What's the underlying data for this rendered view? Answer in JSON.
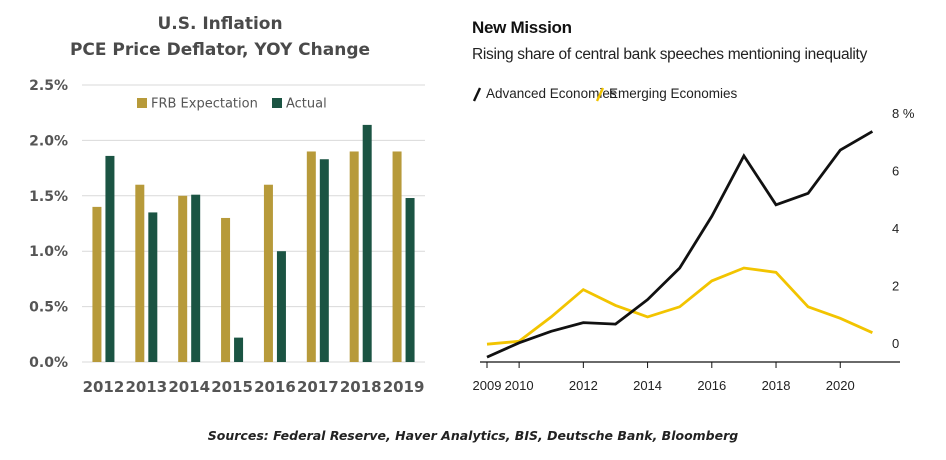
{
  "chart_data": [
    {
      "type": "bar",
      "title": "U.S. Inflation",
      "subtitle": "PCE Price Deflator, YOY Change",
      "categories": [
        "2012",
        "2013",
        "2014",
        "2015",
        "2016",
        "2017",
        "2018",
        "2019"
      ],
      "series": [
        {
          "name": "FRB Expectation",
          "color": "#B79A3A",
          "values": [
            1.4,
            1.6,
            1.5,
            1.3,
            1.6,
            1.9,
            1.9,
            1.9
          ]
        },
        {
          "name": "Actual",
          "color": "#1B5443",
          "values": [
            1.86,
            1.35,
            1.51,
            0.22,
            1.0,
            1.83,
            2.14,
            1.48
          ]
        }
      ],
      "ylim": [
        0,
        2.5
      ],
      "yticks": [
        0,
        0.5,
        1.0,
        1.5,
        2.0,
        2.5
      ],
      "ytick_labels": [
        "0.0%",
        "0.5%",
        "1.0%",
        "1.5%",
        "2.0%",
        "2.5%"
      ],
      "legend": "top",
      "grid": true
    },
    {
      "type": "line",
      "title": "New Mission",
      "subtitle": "Rising share of central bank speeches mentioning inequality",
      "series": [
        {
          "name": "Advanced Economies",
          "color": "#111111",
          "x": [
            2009,
            2010,
            2011,
            2012,
            2013,
            2014,
            2015,
            2016,
            2017,
            2018,
            2019,
            2020,
            2021
          ],
          "values": [
            0.1,
            0.6,
            1.0,
            1.3,
            1.25,
            2.1,
            3.2,
            5.0,
            7.1,
            5.4,
            5.8,
            7.3,
            7.95
          ]
        },
        {
          "name": "Emerging Economies",
          "color": "#F2C400",
          "x": [
            2009,
            2010,
            2011,
            2012,
            2013,
            2014,
            2015,
            2016,
            2017,
            2018,
            2019,
            2020,
            2021
          ],
          "values": [
            0.55,
            0.65,
            1.5,
            2.45,
            1.9,
            1.5,
            1.85,
            2.75,
            3.2,
            3.05,
            1.85,
            1.45,
            0.95
          ]
        }
      ],
      "xticks": [
        2009,
        2010,
        2012,
        2014,
        2016,
        2018,
        2020
      ],
      "xtick_labels": [
        "2009",
        "2010",
        "2012",
        "2014",
        "2016",
        "2018",
        "2020"
      ],
      "yticks": [
        0,
        2,
        4,
        6,
        8
      ],
      "ytick_labels": [
        "0",
        "2",
        "4",
        "6",
        "8 %"
      ],
      "xlim": [
        2009,
        2021.3
      ],
      "ylim": [
        0,
        8
      ],
      "legend": "top-left",
      "grid": false
    }
  ],
  "footer": {
    "sources": "Sources: Federal Reserve, Haver Analytics, BIS, Deutsche Bank, Bloomberg"
  }
}
